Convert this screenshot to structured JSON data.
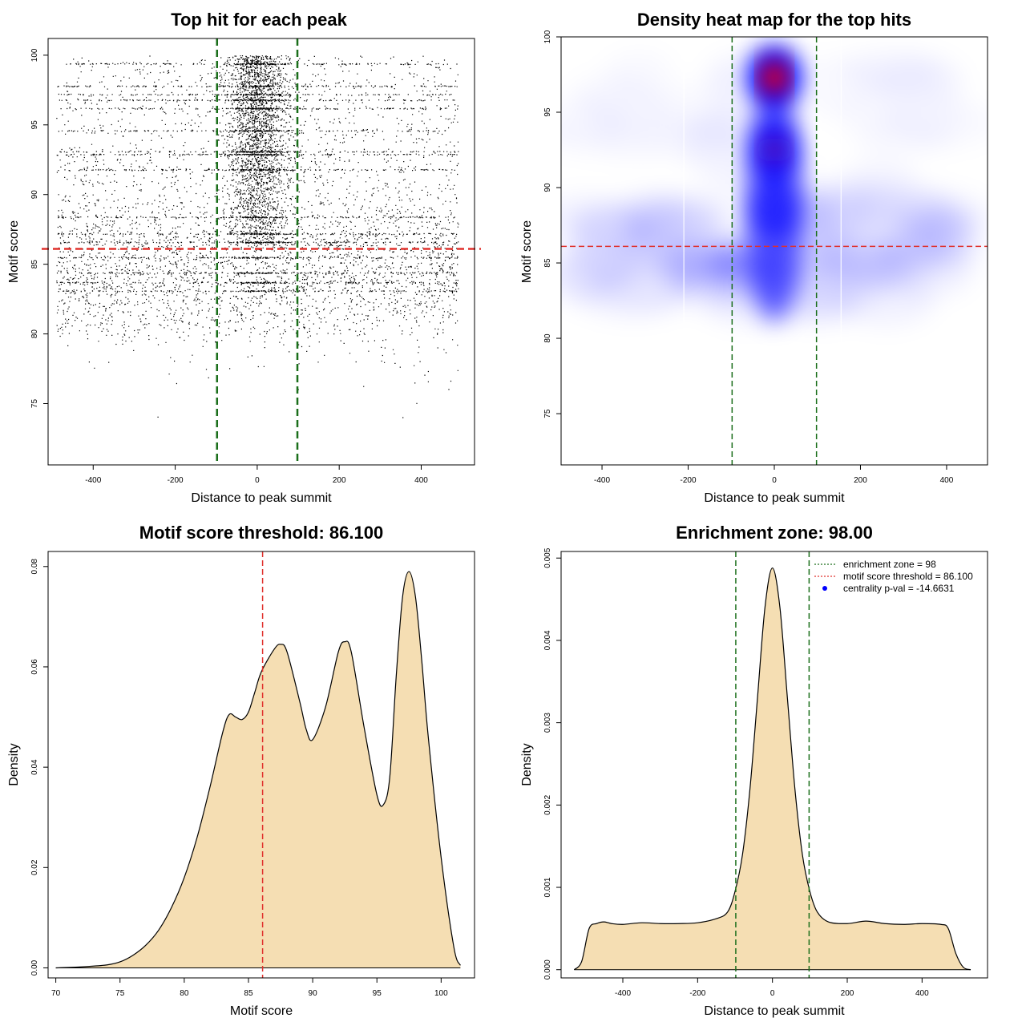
{
  "colors": {
    "enrichment_line": "#1a6e1a",
    "threshold_line": "#e0302c",
    "density_fill": "#f5deb3",
    "heat_low": "#ffffff",
    "heat_mid": "#0000ff",
    "heat_high": "#ff0000",
    "legend_point": "#0000ff"
  },
  "chart_data": [
    {
      "type": "scatter",
      "title": "Top hit for each peak",
      "xlabel": "Distance to peak summit",
      "ylabel": "Motif score",
      "xlim": [
        -510,
        530
      ],
      "ylim": [
        70.6,
        101.2
      ],
      "xticks": [
        -400,
        -200,
        0,
        200,
        400
      ],
      "yticks": [
        75,
        80,
        85,
        90,
        95,
        100
      ],
      "grid": false,
      "enrichment_zone": [
        -98,
        98
      ],
      "motif_score_threshold": 86.1,
      "point_distribution": {
        "n_points": 9000,
        "x_range": [
          -490,
          490
        ],
        "y_range": [
          71.5,
          100
        ],
        "central_cluster_x_range": [
          -98,
          98
        ],
        "central_cluster_y_range": [
          86,
          100
        ]
      }
    },
    {
      "type": "heatmap",
      "title": "Density heat map for the top hits",
      "xlabel": "Distance to peak summit",
      "ylabel": "Motif score",
      "xlim": [
        -495,
        495
      ],
      "ylim": [
        71.6,
        100
      ],
      "xticks": [
        -400,
        -200,
        0,
        200,
        400
      ],
      "yticks": [
        75,
        80,
        85,
        90,
        95,
        100
      ],
      "grid": false,
      "enrichment_zone": [
        -98,
        98
      ],
      "motif_score_threshold": 86.1,
      "hotspots": [
        {
          "x": 0,
          "y": 97.3,
          "intensity": 1.0
        },
        {
          "x": 0,
          "y": 92.5,
          "intensity": 0.75
        },
        {
          "x": 0,
          "y": 88.5,
          "intensity": 0.55
        }
      ]
    },
    {
      "type": "area",
      "title": "Motif score threshold: 86.100",
      "xlabel": "Motif score",
      "ylabel": "Density",
      "xlim": [
        69.4,
        102.6
      ],
      "ylim": [
        -0.002,
        0.083
      ],
      "xticks": [
        70,
        75,
        80,
        85,
        90,
        95,
        100
      ],
      "yticks": [
        0.0,
        0.02,
        0.04,
        0.06,
        0.08
      ],
      "ytick_labels": [
        "0.00",
        "0.02",
        "0.04",
        "0.06",
        "0.08"
      ],
      "grid": false,
      "motif_score_threshold": 86.1,
      "x": [
        70,
        72,
        74,
        75,
        76,
        77,
        78,
        79,
        80,
        81,
        82,
        83,
        83.5,
        84,
        84.5,
        85,
        85.5,
        86,
        87,
        87.5,
        88,
        89,
        89.5,
        90,
        91,
        92,
        92.5,
        93,
        94,
        95,
        95.5,
        96,
        96.5,
        97,
        97.5,
        98,
        98.5,
        99,
        100,
        101,
        101.5
      ],
      "y": [
        0.0,
        0.0002,
        0.0006,
        0.0012,
        0.0025,
        0.0045,
        0.0075,
        0.012,
        0.018,
        0.026,
        0.036,
        0.047,
        0.0505,
        0.05,
        0.0495,
        0.051,
        0.055,
        0.059,
        0.0635,
        0.0645,
        0.063,
        0.053,
        0.0475,
        0.0455,
        0.052,
        0.063,
        0.065,
        0.063,
        0.048,
        0.0345,
        0.0325,
        0.038,
        0.058,
        0.074,
        0.079,
        0.074,
        0.061,
        0.046,
        0.022,
        0.004,
        0.0005
      ]
    },
    {
      "type": "area",
      "title": "Enrichment zone: 98.00",
      "xlabel": "Distance to peak summit",
      "ylabel": "Density",
      "xlim": [
        -565,
        575
      ],
      "ylim": [
        -0.0001,
        0.00508
      ],
      "xticks": [
        -400,
        -200,
        0,
        200,
        400
      ],
      "yticks": [
        0.0,
        0.001,
        0.002,
        0.003,
        0.004,
        0.005
      ],
      "ytick_labels": [
        "0.000",
        "0.001",
        "0.002",
        "0.003",
        "0.004",
        "0.005"
      ],
      "grid": false,
      "enrichment_zone": [
        -98,
        98
      ],
      "x": [
        -530,
        -510,
        -490,
        -470,
        -450,
        -430,
        -400,
        -350,
        -300,
        -250,
        -200,
        -150,
        -120,
        -100,
        -80,
        -60,
        -40,
        -20,
        0,
        20,
        40,
        60,
        80,
        100,
        120,
        150,
        200,
        250,
        300,
        350,
        400,
        450,
        470,
        490,
        510,
        530
      ],
      "y": [
        0.0,
        0.0001,
        0.0005,
        0.00056,
        0.00058,
        0.00056,
        0.00055,
        0.00057,
        0.00056,
        0.00056,
        0.00057,
        0.00062,
        0.0007,
        0.00095,
        0.0014,
        0.0022,
        0.0033,
        0.0044,
        0.00488,
        0.0044,
        0.0033,
        0.0022,
        0.0014,
        0.00095,
        0.0007,
        0.00058,
        0.00056,
        0.00059,
        0.00056,
        0.00055,
        0.00056,
        0.00055,
        0.0005,
        0.0002,
        3e-05,
        0.0
      ],
      "legend": {
        "position": "top-right",
        "entries": [
          {
            "label": "enrichment zone = 98",
            "style": "dotted-line",
            "color": "#1a6e1a"
          },
          {
            "label": "motif score threshold = 86.100",
            "style": "dotted-line",
            "color": "#e0302c"
          },
          {
            "label": "centrality p-val = -14.6631",
            "style": "point",
            "color": "#0000ff"
          }
        ]
      }
    }
  ]
}
